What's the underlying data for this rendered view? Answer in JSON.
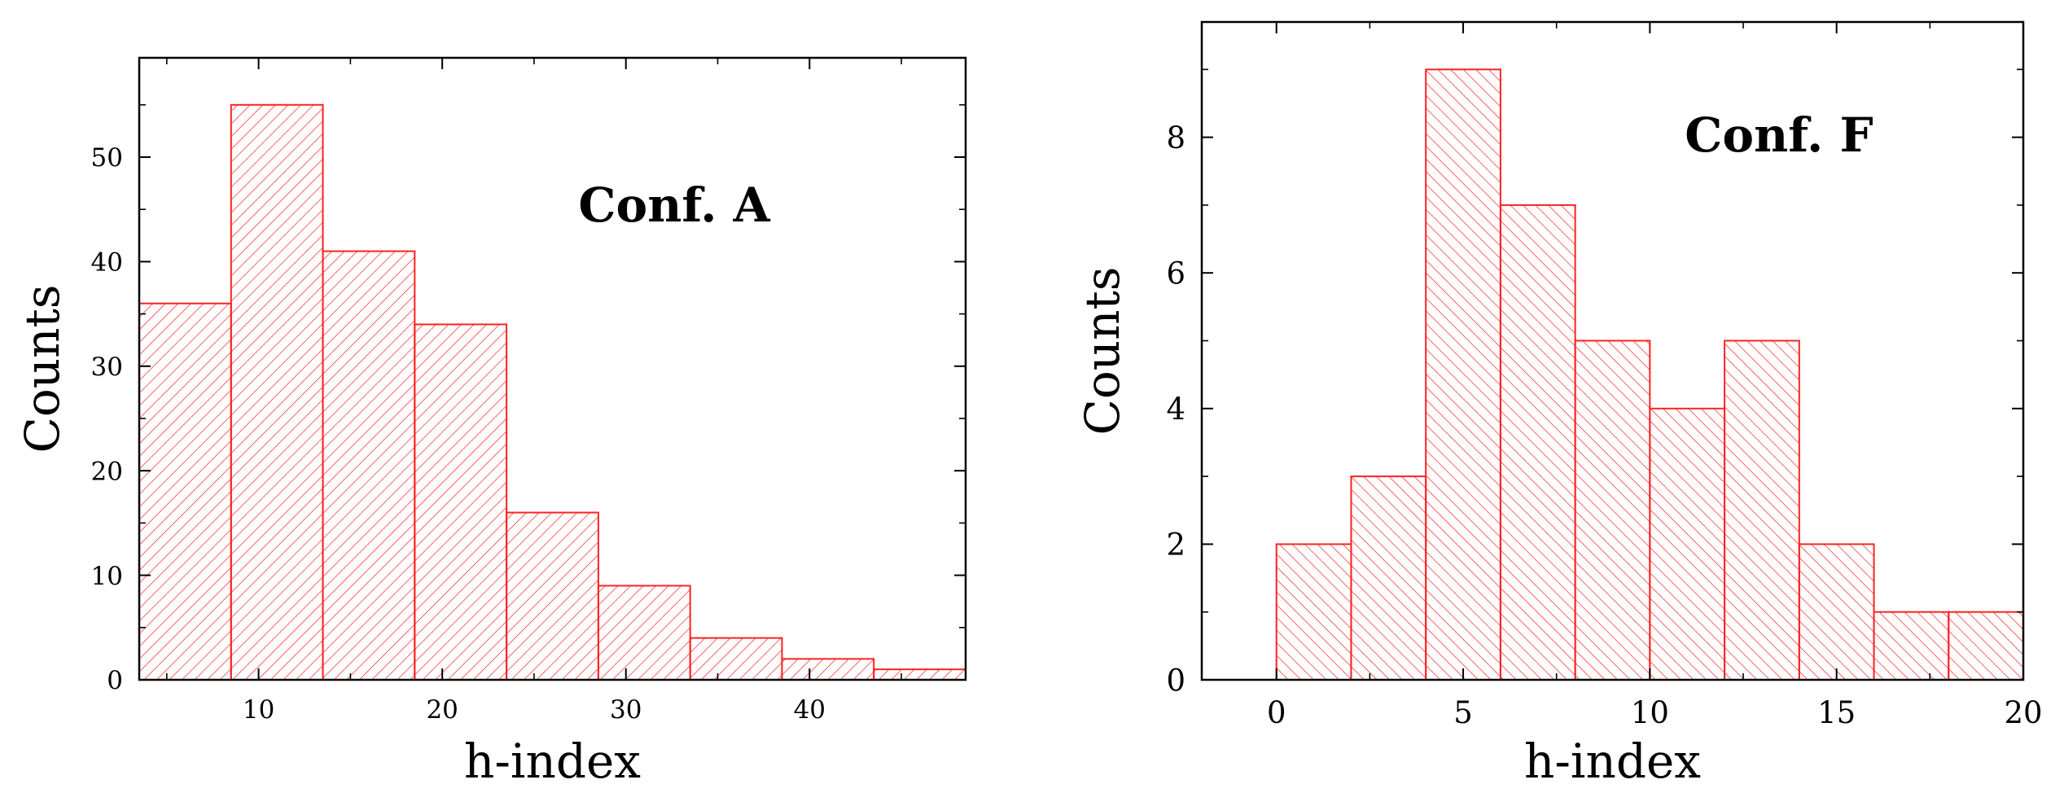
{
  "chart_data": [
    {
      "type": "bar",
      "subtype": "histogram",
      "annotation": "Conf. A",
      "xlabel": "h-index",
      "ylabel": "Counts",
      "bin_width": 5,
      "bins": [
        {
          "start": 3.5,
          "end": 8.5,
          "count": 36
        },
        {
          "start": 8.5,
          "end": 13.5,
          "count": 55
        },
        {
          "start": 13.5,
          "end": 18.5,
          "count": 41
        },
        {
          "start": 18.5,
          "end": 23.5,
          "count": 34
        },
        {
          "start": 23.5,
          "end": 28.5,
          "count": 16
        },
        {
          "start": 28.5,
          "end": 33.5,
          "count": 9
        },
        {
          "start": 33.5,
          "end": 38.5,
          "count": 4
        },
        {
          "start": 38.5,
          "end": 43.5,
          "count": 2
        },
        {
          "start": 43.5,
          "end": 48.5,
          "count": 1
        }
      ],
      "xlim": [
        3.5,
        48.5
      ],
      "ylim": [
        0,
        59.5
      ],
      "xticks": [
        10,
        20,
        30,
        40
      ],
      "xtick_labels": [
        "10",
        "20",
        "30",
        "40"
      ],
      "yticks": [
        0,
        10,
        20,
        30,
        40,
        50
      ],
      "ytick_labels": [
        "0",
        "10",
        "20",
        "30",
        "40",
        "50"
      ],
      "hatch": "forward-diagonal",
      "grid": false,
      "color": "#ff2222"
    },
    {
      "type": "bar",
      "subtype": "histogram",
      "annotation": "Conf. F",
      "xlabel": "h-index",
      "ylabel": "Counts",
      "bin_width": 2,
      "bins": [
        {
          "start": 0,
          "end": 2,
          "count": 2
        },
        {
          "start": 2,
          "end": 4,
          "count": 3
        },
        {
          "start": 4,
          "end": 6,
          "count": 9
        },
        {
          "start": 6,
          "end": 8,
          "count": 7
        },
        {
          "start": 8,
          "end": 10,
          "count": 5
        },
        {
          "start": 10,
          "end": 12,
          "count": 4
        },
        {
          "start": 12,
          "end": 14,
          "count": 5
        },
        {
          "start": 14,
          "end": 16,
          "count": 2
        },
        {
          "start": 16,
          "end": 18,
          "count": 1
        },
        {
          "start": 18,
          "end": 20,
          "count": 1
        }
      ],
      "xlim": [
        -2,
        20
      ],
      "ylim": [
        0,
        9.7
      ],
      "xticks": [
        0,
        5,
        10,
        15,
        20
      ],
      "xtick_labels": [
        "0",
        "5",
        "10",
        "15",
        "20"
      ],
      "yticks": [
        0,
        2,
        4,
        6,
        8
      ],
      "ytick_labels": [
        "0",
        "2",
        "4",
        "6",
        "8"
      ],
      "hatch": "backward-diagonal",
      "grid": false,
      "color": "#ff2222"
    }
  ]
}
